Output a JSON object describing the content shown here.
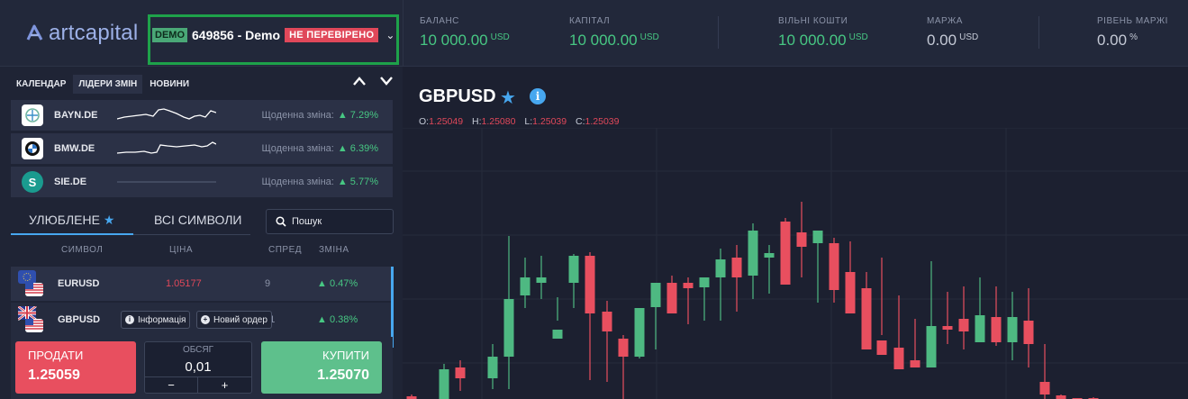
{
  "header": {
    "logo_text": "artcapital",
    "account": {
      "demo_badge": "DEMO",
      "id_label": "649856 - Demo",
      "status": "НЕ ПЕРЕВІРЕНО"
    },
    "stats": [
      {
        "label": "БАЛАНС",
        "value": "10 000.00",
        "currency": "USD"
      },
      {
        "label": "КАПІТАЛ",
        "value": "10 000.00",
        "currency": "USD"
      },
      {
        "label": "ВІЛЬНІ КОШТИ",
        "value": "10 000.00",
        "currency": "USD"
      },
      {
        "label": "МАРЖА",
        "value": "0.00",
        "currency": "USD"
      },
      {
        "label": "РІВЕНЬ МАРЖІ",
        "value": "0.00",
        "currency": "%"
      }
    ]
  },
  "news_tabs": [
    "КАЛЕНДАР",
    "ЛІДЕРИ ЗМІН",
    "НОВИНИ"
  ],
  "leaders": [
    {
      "symbol": "BAYN.DE",
      "label": "Щоденна зміна:",
      "change": "7.29%",
      "icon": "bayer-logo-icon"
    },
    {
      "symbol": "BMW.DE",
      "label": "Щоденна зміна:",
      "change": "6.39%",
      "icon": "bmw-logo-icon"
    },
    {
      "symbol": "SIE.DE",
      "label": "Щоденна зміна:",
      "change": "5.77%",
      "icon": "siemens-logo-icon"
    }
  ],
  "list_tabs": {
    "favorites": "УЛЮБЛЕНЕ",
    "all": "ВСІ СИМВОЛИ"
  },
  "search": {
    "placeholder": "Пошук"
  },
  "columns": {
    "symbol": "СИМВОЛ",
    "price": "ЦІНА",
    "spread": "СПРЕД",
    "change": "ЗМІНА"
  },
  "symbols": [
    {
      "name": "EURUSD",
      "price": "1.05177",
      "spread": "9",
      "change": "0.47%"
    },
    {
      "name": "GBPUSD",
      "price": "",
      "spread": "11",
      "change": "0.38%"
    }
  ],
  "row_buttons": {
    "info": "Інформація",
    "new_order": "Новий ордер"
  },
  "trade": {
    "sell_label": "ПРОДАТИ",
    "sell_price": "1.25059",
    "buy_label": "КУПИТИ",
    "buy_price": "1.25070",
    "volume_label": "ОБСЯГ",
    "volume_value": "0,01",
    "minus": "−",
    "plus": "+"
  },
  "chart": {
    "symbol": "GBPUSD",
    "ohlc": {
      "o_label": "O:",
      "o": "1.25049",
      "h_label": "H:",
      "h": "1.25080",
      "l_label": "L:",
      "l": "1.25039",
      "c_label": "C:",
      "c": "1.25039"
    },
    "colors": {
      "up": "#4eb982",
      "down": "#e84f5f"
    }
  }
}
